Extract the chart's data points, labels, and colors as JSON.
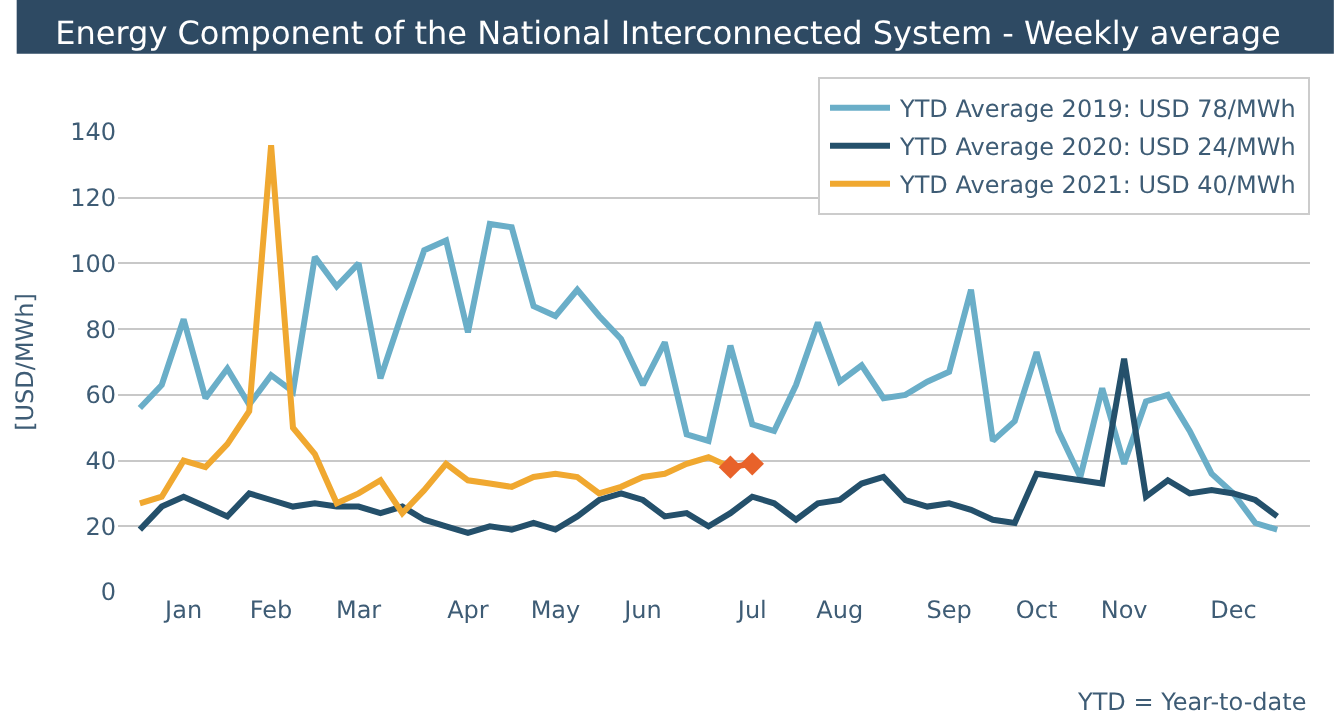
{
  "chart_data": {
    "type": "line",
    "title": "Energy Component of the National Interconnected System - Weekly average",
    "ylabel": "[USD/MWh]",
    "categories": [
      null,
      null,
      "Jan",
      null,
      null,
      null,
      "Feb",
      null,
      null,
      null,
      "Mar",
      null,
      null,
      null,
      null,
      "Apr",
      null,
      null,
      null,
      "May",
      null,
      null,
      null,
      "Jun",
      null,
      null,
      null,
      null,
      "Jul",
      null,
      null,
      null,
      "Aug",
      null,
      null,
      null,
      null,
      "Sep",
      null,
      null,
      null,
      "Oct",
      null,
      null,
      null,
      "Nov",
      null,
      null,
      null,
      null,
      "Dec",
      null,
      null
    ],
    "series": [
      {
        "name": "YTD Average 2019: USD 78/MWh",
        "color": "#6aaec8",
        "values": [
          56,
          63,
          83,
          59,
          68,
          57,
          66,
          61,
          102,
          93,
          100,
          65,
          85,
          104,
          107,
          79,
          112,
          111,
          87,
          84,
          92,
          84,
          77,
          63,
          76,
          48,
          46,
          75,
          51,
          49,
          63,
          82,
          64,
          69,
          59,
          60,
          64,
          67,
          92,
          46,
          52,
          73,
          49,
          35,
          62,
          39,
          58,
          60,
          49,
          36,
          30,
          21,
          19
        ]
      },
      {
        "name": "YTD Average 2020: USD 24/MWh",
        "color": "#24506b",
        "values": [
          19,
          26,
          29,
          26,
          23,
          30,
          28,
          26,
          27,
          26,
          26,
          24,
          26,
          22,
          20,
          18,
          20,
          19,
          21,
          19,
          23,
          28,
          30,
          28,
          23,
          24,
          20,
          24,
          29,
          27,
          22,
          27,
          28,
          33,
          35,
          28,
          26,
          27,
          25,
          22,
          21,
          36,
          35,
          34,
          33,
          71,
          29,
          34,
          30,
          31,
          30,
          28,
          23
        ]
      },
      {
        "name": "YTD Average 2021: USD 40/MWh",
        "color": "#f0a830",
        "values": [
          27,
          29,
          40,
          38,
          45,
          55,
          136,
          50,
          42,
          27,
          30,
          34,
          24,
          31,
          39,
          34,
          33,
          32,
          35,
          36,
          35,
          30,
          32,
          35,
          36,
          39,
          41,
          38,
          null,
          null,
          null,
          null,
          null,
          null,
          null,
          null,
          null,
          null,
          null,
          null,
          null,
          null,
          null,
          null,
          null,
          null,
          null,
          null,
          null,
          null,
          null,
          null,
          null
        ]
      },
      {
        "color": "#e8622a",
        "marker": "diamond",
        "values": [
          null,
          null,
          null,
          null,
          null,
          null,
          null,
          null,
          null,
          null,
          null,
          null,
          null,
          null,
          null,
          null,
          null,
          null,
          null,
          null,
          null,
          null,
          null,
          null,
          null,
          null,
          null,
          38,
          39,
          null,
          null,
          null,
          null,
          null,
          null,
          null,
          null,
          null,
          null,
          null,
          null,
          null,
          null,
          null,
          null,
          null,
          null,
          null,
          null,
          null,
          null,
          null,
          null
        ]
      }
    ],
    "ylim": [
      0,
      140
    ],
    "yticks": [
      0,
      20,
      40,
      60,
      80,
      100,
      120,
      140
    ],
    "grid": "y",
    "legend": "top right",
    "annotations": [
      "YTD = Year-to-date"
    ]
  }
}
